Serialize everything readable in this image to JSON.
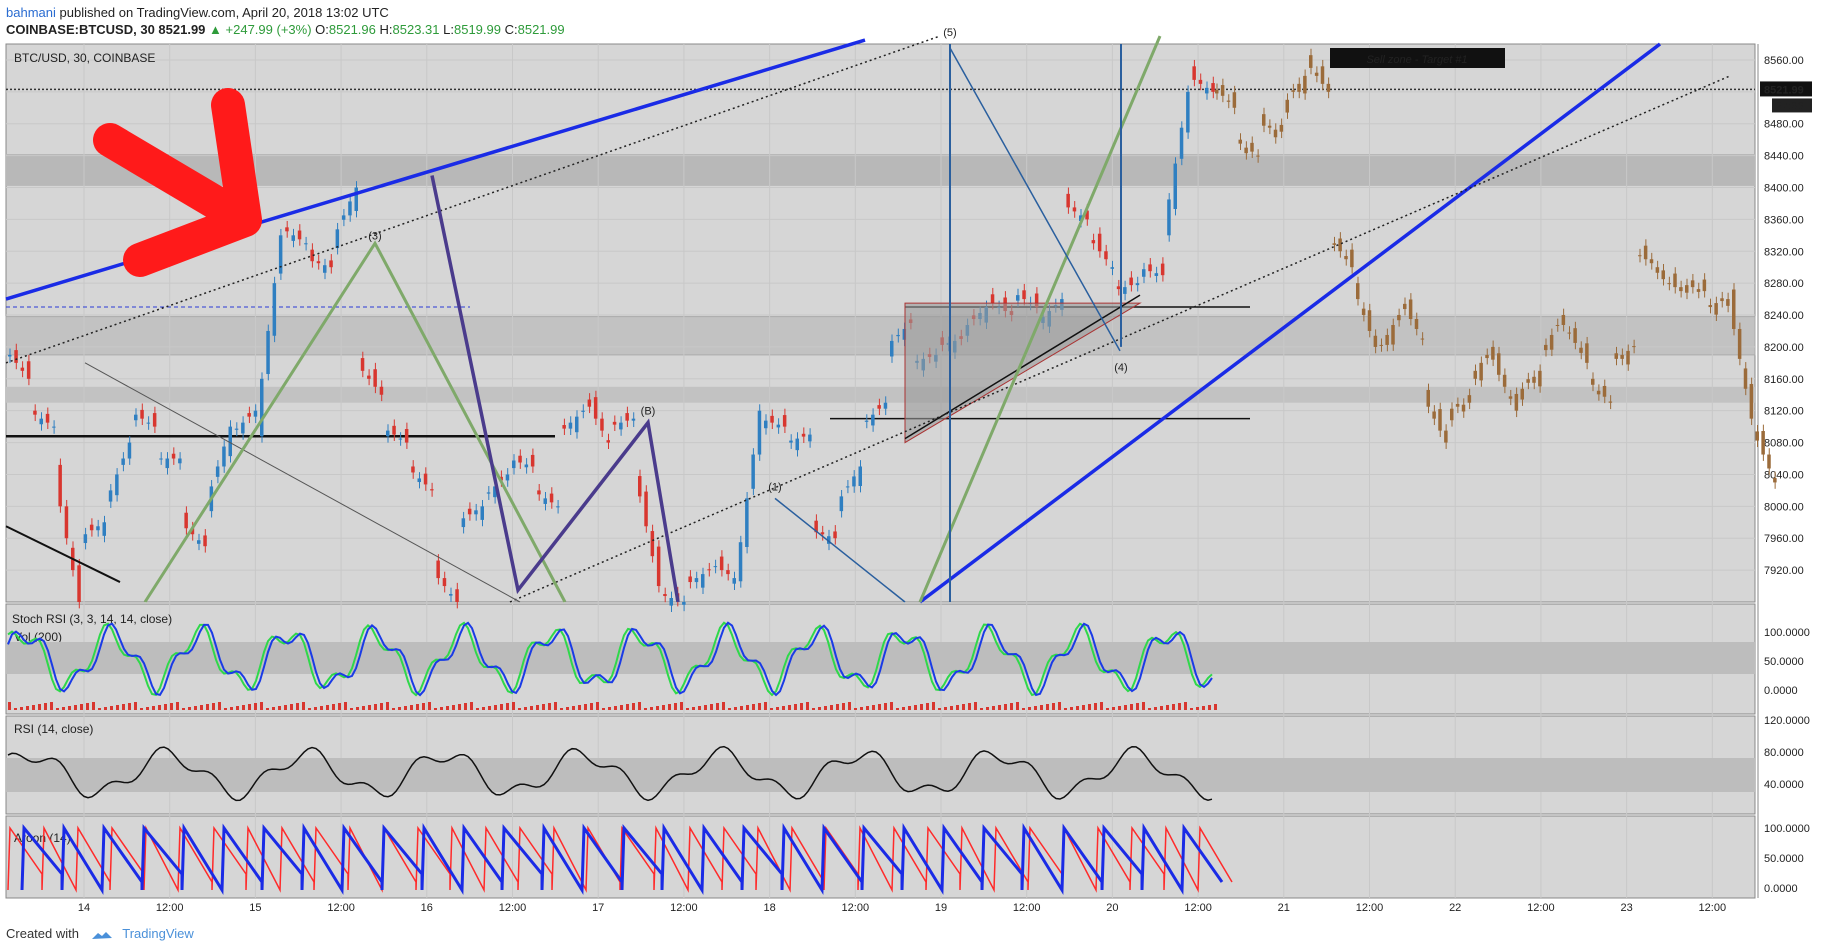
{
  "header": {
    "user": "bahmani",
    "published": "published on TradingView.com, April 20, 2018 13:02 UTC",
    "symbol": "COINBASE:BTCUSD, 30",
    "last": "8521.99",
    "change": "▲ +247.99 (+3%)",
    "o_label": "O:",
    "o": "8521.96",
    "h_label": "H:",
    "h": "8523.31",
    "l_label": "L:",
    "l": "8519.99",
    "c_label": "C:",
    "c": "8521.99"
  },
  "footer": {
    "created_with": "Created with",
    "brand": "TradingView"
  },
  "chart_data": {
    "type": "candlestick",
    "title": "BTC/USD, 30, COINBASE",
    "annotation": "Sell zone - Target #1",
    "price_axis": {
      "min": 7880,
      "max": 8580,
      "ticks": [
        "8560.00",
        "8520.00",
        "8480.00",
        "8440.00",
        "8400.00",
        "8360.00",
        "8320.00",
        "8280.00",
        "8240.00",
        "8200.00",
        "8160.00",
        "8120.00",
        "8080.00",
        "8040.00",
        "8000.00",
        "7960.00",
        "7920.00"
      ]
    },
    "last_price_label": "8521.99",
    "countdown_label": "27:36",
    "time_axis": [
      "14",
      "12:00",
      "15",
      "12:00",
      "16",
      "12:00",
      "17",
      "12:00",
      "18",
      "12:00",
      "19",
      "12:00",
      "20",
      "12:00",
      "21",
      "12:00",
      "22",
      "12:00",
      "23",
      "12:00"
    ],
    "wave_labels": [
      "(3)",
      "(B)",
      "(1)",
      "(4)",
      "(5)"
    ],
    "price_path": [
      [
        8200,
        8160
      ],
      [
        8120,
        8100
      ],
      [
        8040,
        7880
      ],
      [
        7960,
        7980
      ],
      [
        8000,
        8080
      ],
      [
        8120,
        8100
      ],
      [
        8060,
        8060
      ],
      [
        7980,
        7950
      ],
      [
        8000,
        8100
      ],
      [
        8090,
        8120
      ],
      [
        8100,
        8340
      ],
      [
        8350,
        8330
      ],
      [
        8310,
        8300
      ],
      [
        8330,
        8400
      ],
      [
        8180,
        8140
      ],
      [
        8100,
        8080
      ],
      [
        8050,
        8020
      ],
      [
        7920,
        7880
      ],
      [
        7980,
        8000
      ],
      [
        8010,
        8040
      ],
      [
        8060,
        8050
      ],
      [
        8020,
        8000
      ],
      [
        8090,
        8120
      ],
      [
        8140,
        8080
      ],
      [
        8100,
        8110
      ],
      [
        8050,
        7900
      ],
      [
        7890,
        7880
      ],
      [
        7900,
        7920
      ],
      [
        7930,
        7910
      ],
      [
        7900,
        8120
      ],
      [
        8110,
        8100
      ],
      [
        8080,
        8090
      ],
      [
        7970,
        7960
      ],
      [
        8000,
        8050
      ],
      [
        8100,
        8130
      ],
      [
        8200,
        8230
      ],
      [
        8180,
        8190
      ],
      [
        8200,
        8210
      ],
      [
        8220,
        8250
      ],
      [
        8260,
        8240
      ],
      [
        8270,
        8250
      ],
      [
        8230,
        8260
      ],
      [
        8380,
        8360
      ],
      [
        8340,
        8300
      ],
      [
        8270,
        8280
      ],
      [
        8300,
        8290
      ],
      [
        8340,
        8520
      ],
      [
        8540,
        8520
      ]
    ],
    "projection_path": [
      [
        8530,
        8500
      ],
      [
        8460,
        8440
      ],
      [
        8480,
        8470
      ],
      [
        8500,
        8540
      ],
      [
        8560,
        8520
      ],
      [
        8340,
        8300
      ],
      [
        8280,
        8200
      ],
      [
        8190,
        8240
      ],
      [
        8260,
        8210
      ],
      [
        8140,
        8080
      ],
      [
        8120,
        8130
      ],
      [
        8160,
        8200
      ],
      [
        8180,
        8120
      ],
      [
        8140,
        8170
      ],
      [
        8190,
        8240
      ],
      [
        8230,
        8180
      ],
      [
        8160,
        8130
      ],
      [
        8180,
        8200
      ],
      [
        8320,
        8300
      ],
      [
        8290,
        8270
      ],
      [
        8280,
        8270
      ],
      [
        8250,
        8260
      ],
      [
        8260,
        8110
      ],
      [
        8100,
        8030
      ]
    ],
    "drawings": [
      "trend lines",
      "zones",
      "triangle",
      "elliott waves"
    ],
    "indicators": [
      {
        "name": "Stoch RSI (3, 3, 14, 14, close)",
        "ticks": [
          "100.0000",
          "50.0000",
          "0.0000"
        ]
      },
      {
        "name": "Vol (200)"
      },
      {
        "name": "RSI (14, close)",
        "ticks": [
          "120.0000",
          "80.0000",
          "40.0000"
        ]
      },
      {
        "name": "Aroon (14)",
        "ticks": [
          "100.0000",
          "50.0000",
          "0.0000"
        ]
      }
    ],
    "colors": {
      "up": "#2f7fc1",
      "down": "#d8362f",
      "projection": "#9b6b3a",
      "trend": "#1a2be6",
      "green": "#7fa96a",
      "purple": "#4a3b8c",
      "arrow": "#ff1a1a",
      "aroon_up": "#1a2be6",
      "aroon_down": "#ff2a2a",
      "stoch_k": "#1a3be6",
      "stoch_d": "#2fd84a",
      "rsi": "#111111"
    }
  }
}
